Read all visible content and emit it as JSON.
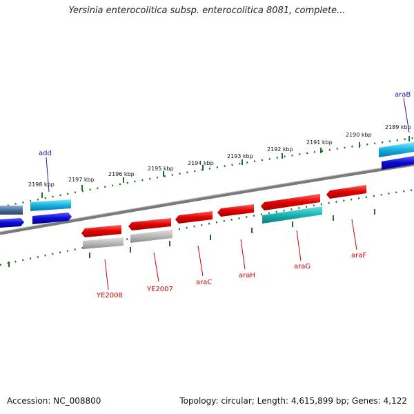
{
  "title": "Yersinia enterocolitica subsp. enterocolitica 8081, complete...",
  "footer": {
    "accession": "Accession: NC_008800",
    "summary": "Topology: circular; Length: 4,615,899 bp; Genes: 4,122"
  },
  "ruler_labels": [
    "2189 kbp",
    "2190 kbp",
    "2191 kbp",
    "2192 kbp",
    "2193 kbp",
    "2194 kbp",
    "2195 kbp",
    "2196 kbp",
    "2197 kbp",
    "2198 kbp"
  ],
  "gene_labels": {
    "add": "add",
    "araB": "araB",
    "YE2008": "YE2008",
    "YE2007": "YE2007",
    "araC": "araC",
    "araH": "araH",
    "araG": "araG",
    "araF": "araF"
  },
  "colors": {
    "backbone": "#808080",
    "tick_green": "#1f6e1f",
    "gene_red": "#e00000",
    "gene_cyan": "#19b0e0",
    "gene_blue": "#0a0ad0",
    "gene_teal": "#1ab8b8",
    "gene_gray": "#b0b0b0",
    "gene_slate": "#4a6f9a"
  }
}
